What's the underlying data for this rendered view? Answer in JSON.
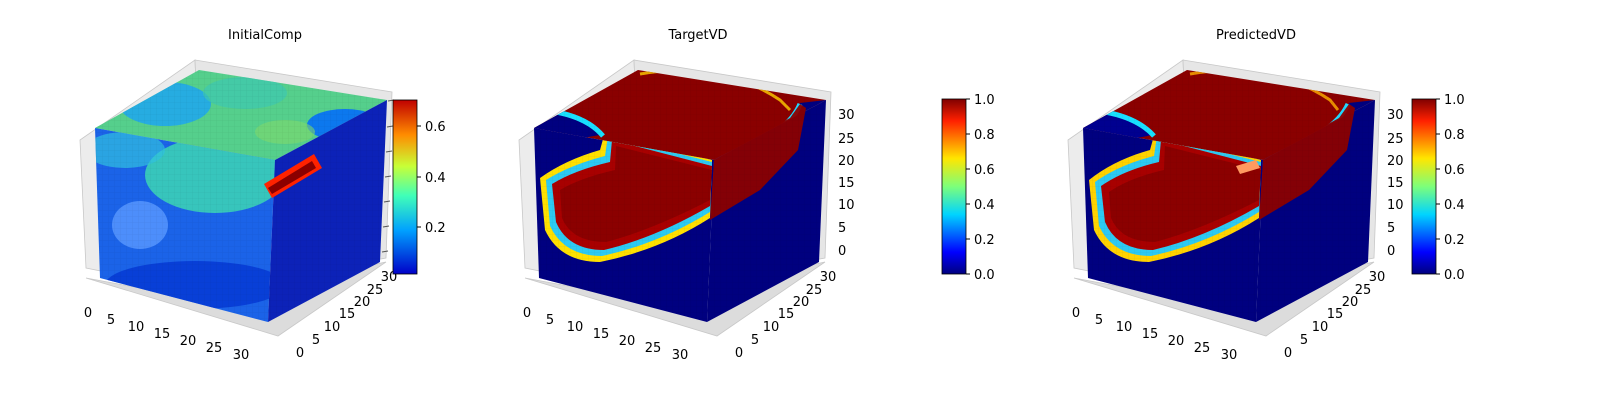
{
  "figure": {
    "subplots": [
      {
        "title": "InitialComp",
        "chart": "volume-3d",
        "x_ticks": [
          "0",
          "5",
          "10",
          "15",
          "20",
          "25",
          "30"
        ],
        "y_ticks": [
          "0",
          "5",
          "10",
          "15",
          "20",
          "25",
          "30"
        ],
        "z_ticks": [],
        "colorbar": {
          "colormap": "jet",
          "range": [
            0.02,
            0.7
          ],
          "ticks": [
            "0.2",
            "0.4",
            "0.6"
          ]
        },
        "appearance": "mostly blue-green volume with a high-value (red) rod on the right face"
      },
      {
        "title": "TargetVD",
        "chart": "volume-3d",
        "x_ticks": [
          "0",
          "5",
          "10",
          "15",
          "20",
          "25",
          "30"
        ],
        "y_ticks": [
          "0",
          "5",
          "10",
          "15",
          "20",
          "25",
          "30"
        ],
        "z_ticks": [
          "0",
          "5",
          "10",
          "15",
          "20",
          "25",
          "30"
        ],
        "colorbar": {
          "colormap": "jet",
          "range": [
            0.0,
            1.0
          ],
          "ticks": [
            "0.0",
            "0.2",
            "0.4",
            "0.6",
            "0.8",
            "1.0"
          ]
        },
        "appearance": "dark red inclusion with blue-rim boundary inside a dark blue cube"
      },
      {
        "title": "PredictedVD",
        "chart": "volume-3d",
        "x_ticks": [
          "0",
          "5",
          "10",
          "15",
          "20",
          "25",
          "30"
        ],
        "y_ticks": [
          "0",
          "5",
          "10",
          "15",
          "20",
          "25",
          "30"
        ],
        "z_ticks": [
          "0",
          "5",
          "10",
          "15",
          "20",
          "25",
          "30"
        ],
        "colorbar": {
          "colormap": "jet",
          "range": [
            0.0,
            1.0
          ],
          "ticks": [
            "0.0",
            "0.2",
            "0.4",
            "0.6",
            "0.8",
            "1.0"
          ]
        },
        "appearance": "prediction closely matching TargetVD"
      }
    ]
  },
  "chart_data": [
    {
      "type": "heatmap",
      "title": "InitialComp",
      "dims": [
        32,
        32,
        32
      ],
      "xlim": [
        0,
        32
      ],
      "ylim": [
        0,
        32
      ],
      "value_range": [
        0.02,
        0.7
      ],
      "colorbar_ticks": [
        0.2,
        0.4,
        0.6
      ],
      "grid": true
    },
    {
      "type": "heatmap",
      "title": "TargetVD",
      "dims": [
        32,
        32,
        32
      ],
      "xlim": [
        0,
        32
      ],
      "ylim": [
        0,
        32
      ],
      "zlim": [
        0,
        32
      ],
      "value_range": [
        0.0,
        1.0
      ],
      "colorbar_ticks": [
        0.0,
        0.2,
        0.4,
        0.6,
        0.8,
        1.0
      ],
      "grid": true
    },
    {
      "type": "heatmap",
      "title": "PredictedVD",
      "dims": [
        32,
        32,
        32
      ],
      "xlim": [
        0,
        32
      ],
      "ylim": [
        0,
        32
      ],
      "zlim": [
        0,
        32
      ],
      "value_range": [
        0.0,
        1.0
      ],
      "colorbar_ticks": [
        0.0,
        0.2,
        0.4,
        0.6,
        0.8,
        1.0
      ],
      "grid": true
    }
  ]
}
